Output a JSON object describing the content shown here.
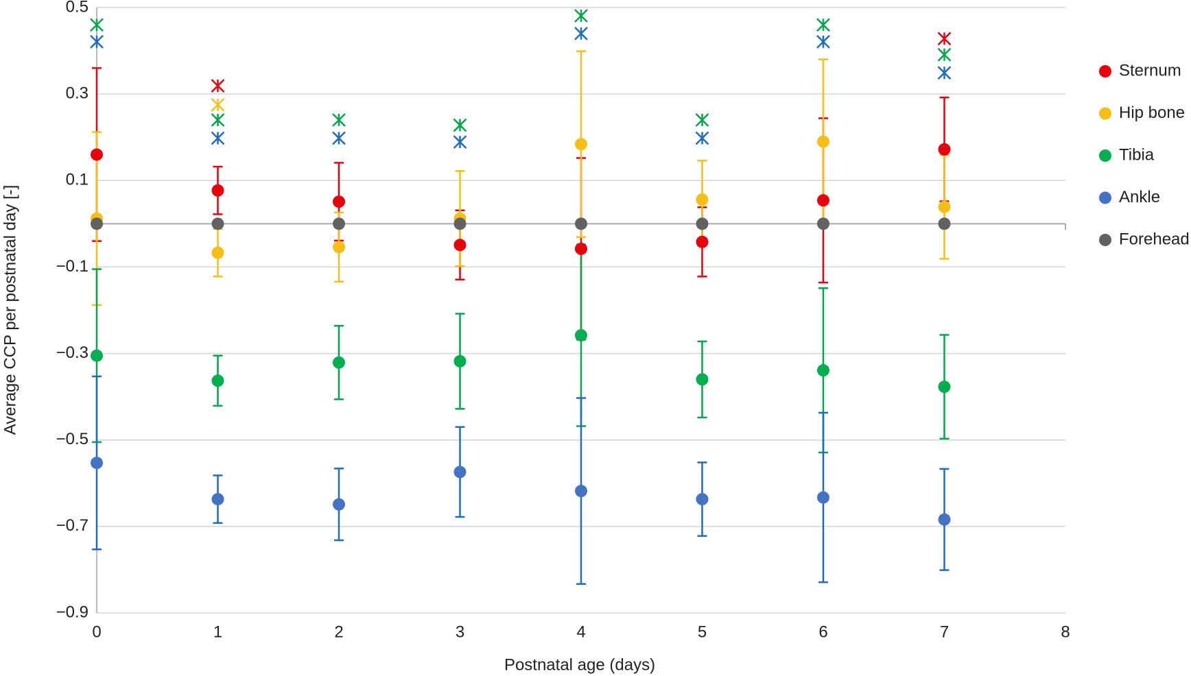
{
  "chart_data": {
    "type": "errorbar_scatter",
    "x_label": "Postnatal age (days)",
    "y_label": "Average CCP per postnatal day [-]",
    "xlim": [
      0,
      8
    ],
    "xticks": [
      0,
      1,
      2,
      3,
      4,
      5,
      6,
      7,
      8
    ],
    "ylim": [
      -0.9,
      0.5
    ],
    "yticks": [
      {
        "value": -0.9,
        "label": "−0.9"
      },
      {
        "value": -0.7,
        "label": "−0.7"
      },
      {
        "value": -0.5,
        "label": "−0.5"
      },
      {
        "value": -0.3,
        "label": "−0.3"
      },
      {
        "value": -0.1,
        "label": "−0.1"
      },
      0.1,
      0.3,
      0.5
    ],
    "grid": true,
    "legend": "right",
    "x": [
      0,
      1,
      2,
      3,
      4,
      5,
      6,
      7
    ],
    "series": [
      {
        "name": "Sternum",
        "color": "#e8000b",
        "bar_color": "#e8000b",
        "values": [
          0.16,
          0.077,
          0.051,
          -0.049,
          -0.058,
          -0.042,
          0.054,
          0.172
        ],
        "errors": [
          0.2,
          0.055,
          0.09,
          0.08,
          0.21,
          0.08,
          0.19,
          0.12
        ],
        "markers": [
          null,
          0.319,
          null,
          null,
          null,
          null,
          null,
          0.428
        ]
      },
      {
        "name": "Hip bone",
        "color": "#f7bf16",
        "bar_color": "#f7bf16",
        "values": [
          0.012,
          -0.067,
          -0.054,
          0.012,
          0.184,
          0.056,
          0.19,
          0.039
        ],
        "errors": [
          0.2,
          0.055,
          0.08,
          0.11,
          0.215,
          0.09,
          0.19,
          0.12
        ],
        "markers": [
          null,
          0.275,
          null,
          null,
          null,
          null,
          null,
          null
        ]
      },
      {
        "name": "Tibia",
        "color": "#00b050",
        "bar_color": "#00a84a",
        "values": [
          -0.305,
          -0.363,
          -0.321,
          -0.318,
          -0.258,
          -0.36,
          -0.339,
          -0.377
        ],
        "errors": [
          0.2,
          0.058,
          0.085,
          0.11,
          0.21,
          0.088,
          0.19,
          0.12
        ],
        "markers": [
          0.46,
          0.24,
          0.24,
          0.228,
          0.481,
          0.24,
          0.46,
          0.391
        ]
      },
      {
        "name": "Ankle",
        "color": "#4472c4",
        "bar_color": "#1f6cbf",
        "values": [
          -0.553,
          -0.637,
          -0.649,
          -0.574,
          -0.618,
          -0.637,
          -0.633,
          -0.684
        ],
        "errors": [
          0.2,
          0.055,
          0.083,
          0.104,
          0.215,
          0.085,
          0.196,
          0.117
        ],
        "markers": [
          0.421,
          0.198,
          0.198,
          0.189,
          0.44,
          0.198,
          0.421,
          0.349
        ]
      },
      {
        "name": "Forehead",
        "color": "#626262",
        "values": [
          0,
          0,
          0,
          0,
          0,
          0,
          0,
          0
        ]
      }
    ]
  }
}
